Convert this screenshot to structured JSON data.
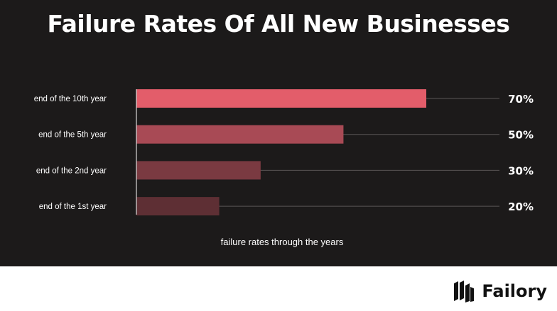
{
  "title": "Failure Rates Of All New Businesses",
  "brand": {
    "name": "Failory",
    "icon": "failory-logo-icon"
  },
  "colors": {
    "background": "#1c1a1a",
    "bars": [
      "#e35d6a",
      "#a84a55",
      "#7a3a41",
      "#5e2f34"
    ],
    "text": "#ffffff"
  },
  "chart_data": {
    "type": "bar",
    "orientation": "horizontal",
    "categories": [
      "end of the 10th year",
      "end of the 5th year",
      "end of the 2nd year",
      "end of the 1st year"
    ],
    "values": [
      70,
      50,
      30,
      20
    ],
    "value_labels": [
      "70%",
      "50%",
      "30%",
      "20%"
    ],
    "xlabel": "failure rates through the years",
    "xlim": [
      0,
      70
    ],
    "grid": true
  }
}
